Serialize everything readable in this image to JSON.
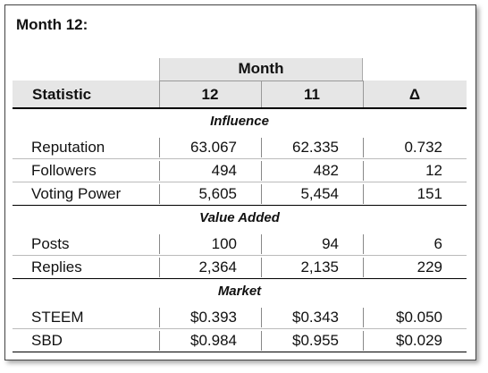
{
  "title": "Month 12:",
  "table": {
    "group_header": "Month",
    "columns": [
      "Statistic",
      "12",
      "11",
      "Δ"
    ],
    "sections": [
      {
        "label": "Influence",
        "rows": [
          [
            "Reputation",
            "63.067",
            "62.335",
            "0.732"
          ],
          [
            "Followers",
            "494",
            "482",
            "12"
          ],
          [
            "Voting Power",
            "5,605",
            "5,454",
            "151"
          ]
        ]
      },
      {
        "label": "Value Added",
        "rows": [
          [
            "Posts",
            "100",
            "94",
            "6"
          ],
          [
            "Replies",
            "2,364",
            "2,135",
            "229"
          ]
        ]
      },
      {
        "label": "Market",
        "rows": [
          [
            "STEEM",
            "$0.393",
            "$0.343",
            "$0.050"
          ],
          [
            "SBD",
            "$0.984",
            "$0.955",
            "$0.029"
          ]
        ]
      }
    ]
  }
}
